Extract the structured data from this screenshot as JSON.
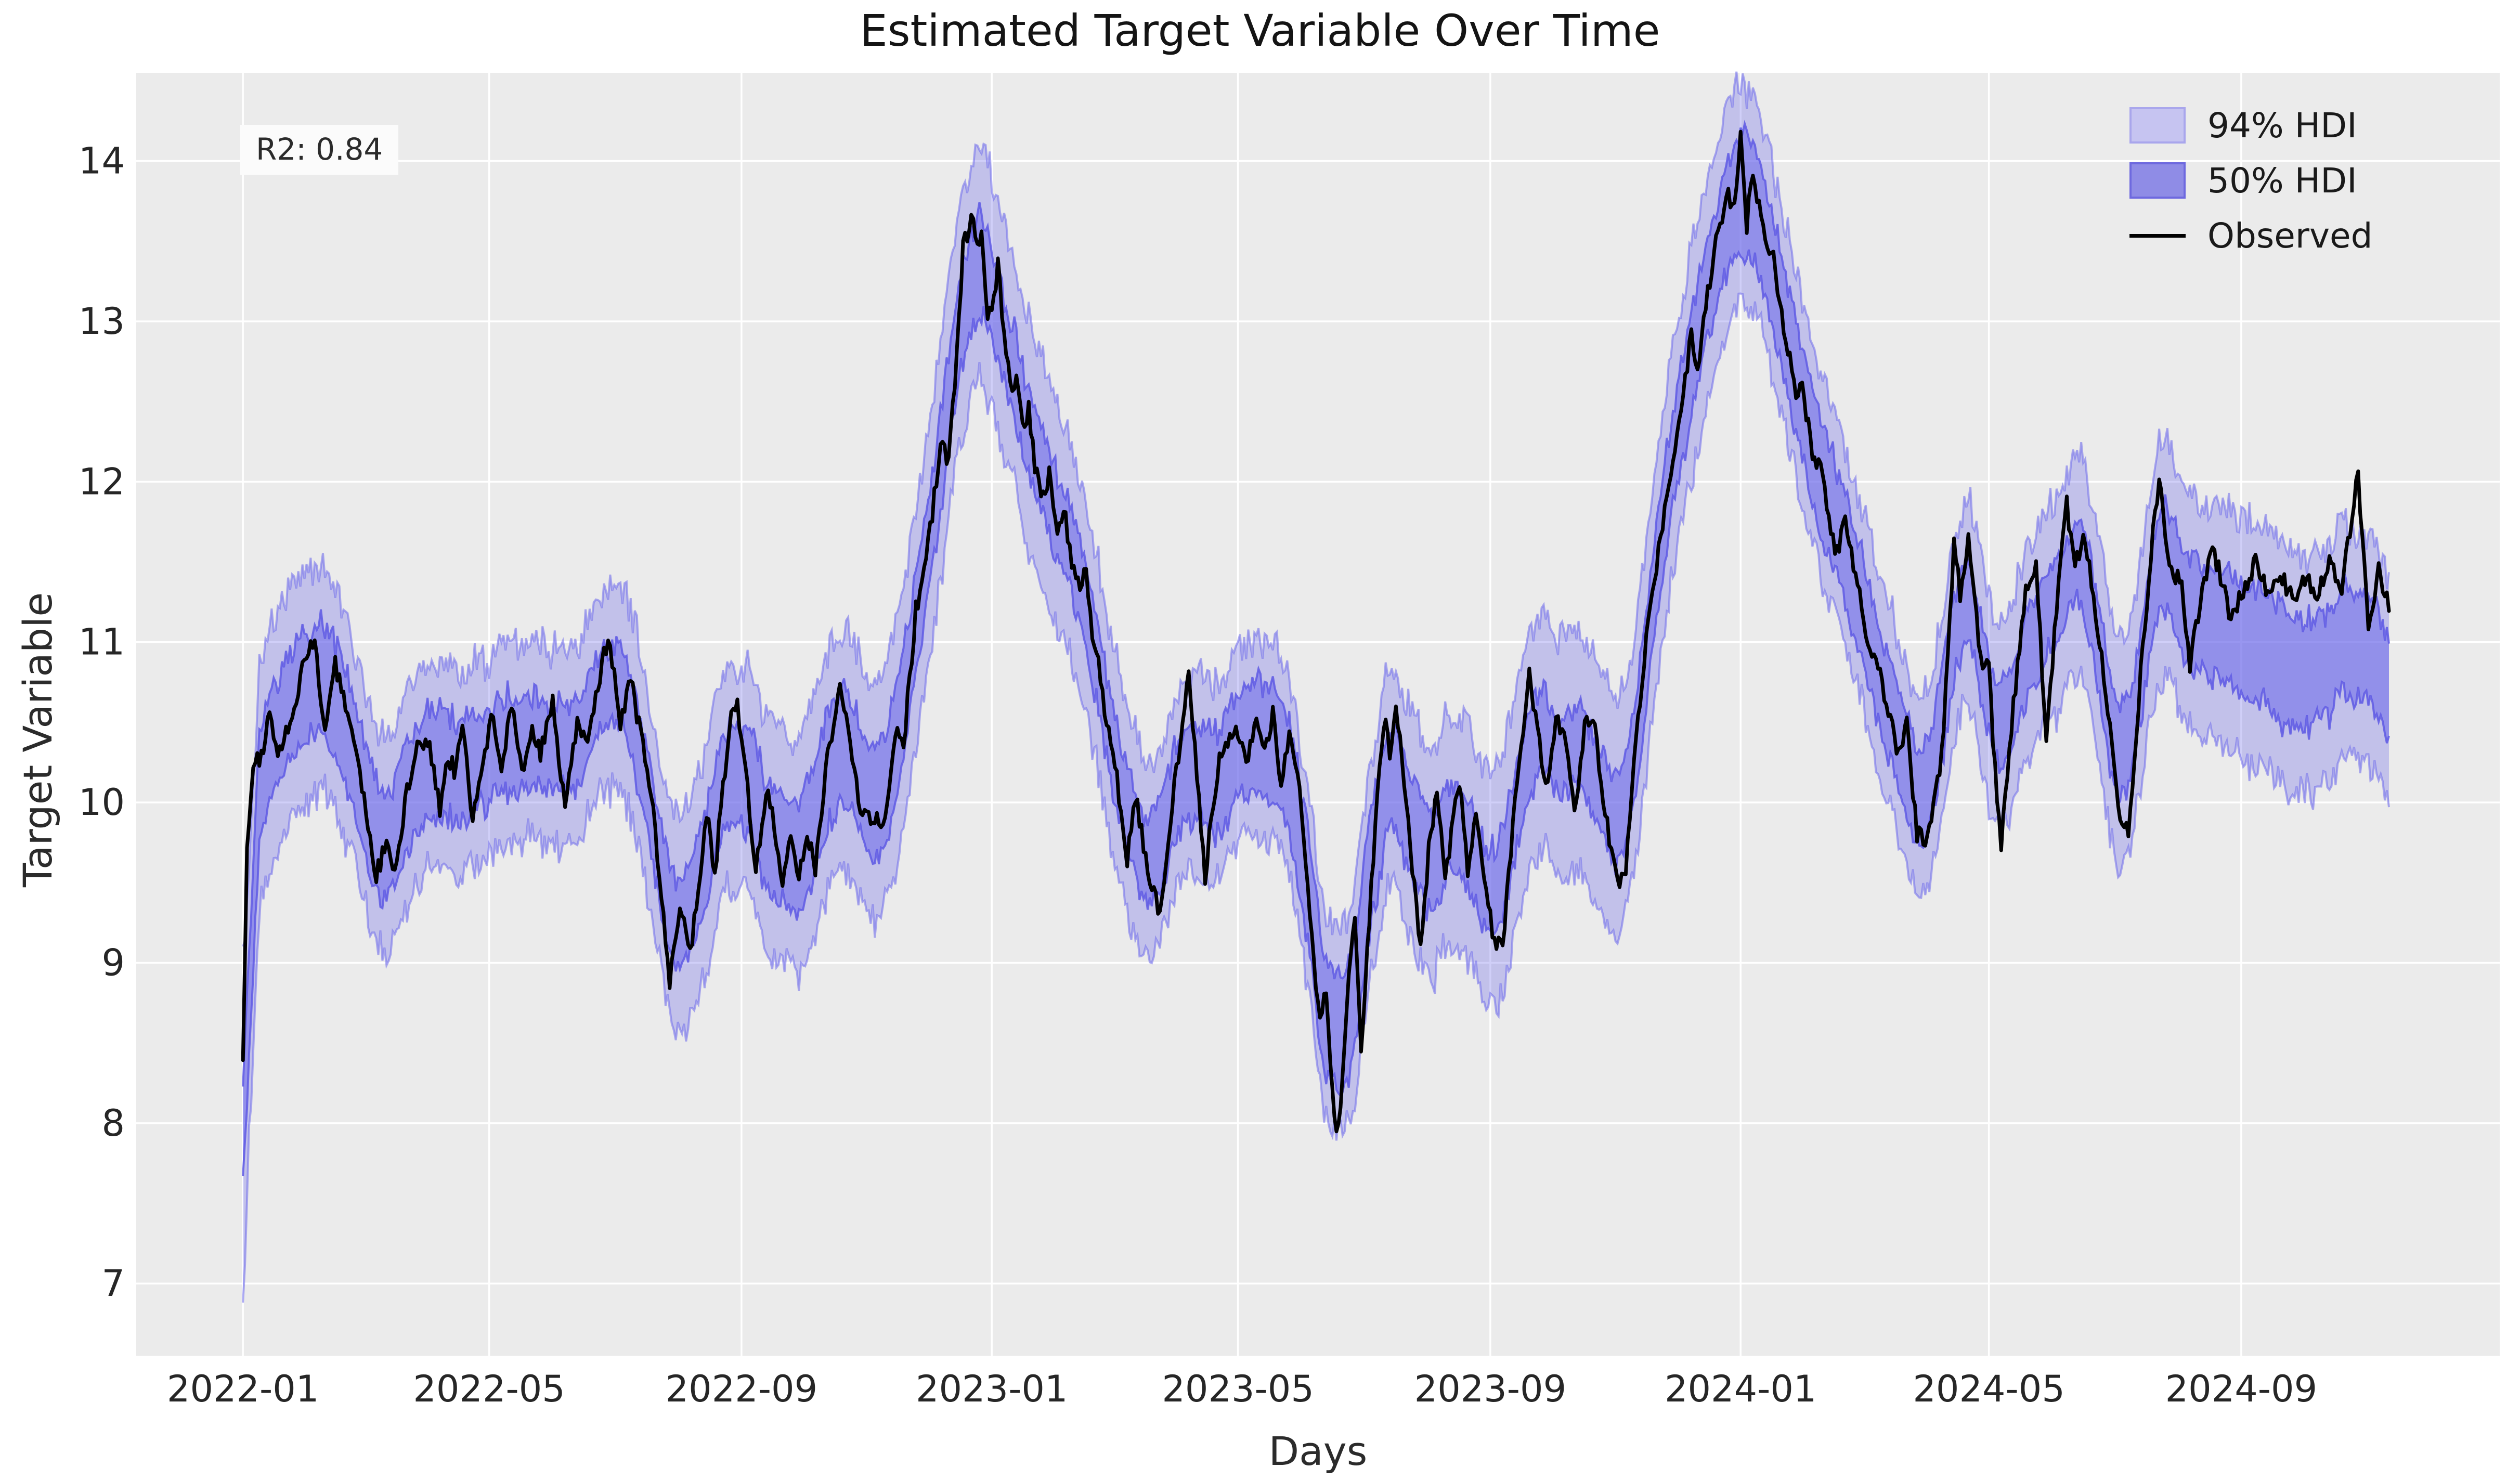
{
  "figure": {
    "title": "Estimated Target Variable Over Time",
    "xlabel": "Days",
    "ylabel": "Target Variable",
    "annotation": "R2: 0.84"
  },
  "legend": {
    "entries": [
      {
        "label": "94% HDI",
        "swatch": "patch",
        "fill": "#c6c4f1",
        "edge": "#a9a6ec"
      },
      {
        "label": "50% HDI",
        "swatch": "patch",
        "fill": "#8f8ce6",
        "edge": "#6e69df"
      },
      {
        "label": "Observed",
        "swatch": "line",
        "color": "#000000"
      }
    ]
  },
  "chart_data": {
    "type": "line",
    "title": "Estimated Target Variable Over Time",
    "xlabel": "Days",
    "ylabel": "Target Variable",
    "x_start_date": "2022-01-01",
    "x_end_date": "2024-11-12",
    "xlim_days": [
      -52,
      1100
    ],
    "ylim": [
      6.55,
      14.55
    ],
    "y_ticks": [
      7,
      8,
      9,
      10,
      11,
      12,
      13,
      14
    ],
    "x_ticks": [
      {
        "day": 0,
        "label": "2022-01"
      },
      {
        "day": 120,
        "label": "2022-05"
      },
      {
        "day": 243,
        "label": "2022-09"
      },
      {
        "day": 365,
        "label": "2023-01"
      },
      {
        "day": 485,
        "label": "2023-05"
      },
      {
        "day": 608,
        "label": "2023-09"
      },
      {
        "day": 730,
        "label": "2024-01"
      },
      {
        "day": 851,
        "label": "2024-05"
      },
      {
        "day": 974,
        "label": "2024-09"
      }
    ],
    "grid": true,
    "legend_position": "upper right",
    "series": [
      {
        "name": "Observed",
        "type": "line",
        "color": "#000000",
        "anchor_days": [
          0,
          2,
          5,
          9,
          13,
          17,
          21,
          25,
          30,
          35,
          40,
          45,
          51,
          56,
          60,
          65,
          70,
          74,
          79,
          85,
          90,
          96,
          100,
          103,
          107,
          112,
          116,
          121,
          126,
          131,
          136,
          141,
          145,
          151,
          157,
          163,
          168,
          173,
          178,
          184,
          189,
          192,
          196,
          200,
          204,
          208,
          213,
          218,
          223,
          226,
          230,
          234,
          238,
          241,
          244,
          250,
          256,
          263,
          267,
          271,
          275,
          279,
          284,
          291,
          296,
          301,
          307,
          313,
          319,
          322,
          328,
          334,
          338,
          341,
          344,
          348,
          351,
          353,
          356,
          358,
          360,
          363,
          366,
          368,
          371,
          374,
          377,
          380,
          383,
          386,
          390,
          393,
          397,
          400,
          404,
          408,
          411,
          414,
          417,
          420,
          422,
          426,
          431,
          435,
          441,
          447,
          455,
          461,
          469,
          476,
          485,
          489,
          494,
          498,
          502,
          506,
          510,
          514,
          517,
          522,
          525,
          528,
          532,
          534,
          539,
          542,
          545,
          550,
          554,
          557,
          559,
          562,
          566,
          570,
          574,
          578,
          582,
          586,
          589,
          593,
          597,
          601,
          606,
          610,
          614,
          620,
          627,
          635,
          640,
          644,
          649,
          655,
          659,
          665,
          671,
          674,
          678,
          683,
          688,
          694,
          700,
          706,
          709,
          713,
          718,
          724,
          727,
          730,
          733,
          735,
          737,
          741,
          744,
          746,
          749,
          754,
          757,
          760,
          765,
          770,
          774,
          777,
          781,
          785,
          792,
          799,
          807,
          811,
          816,
          821,
          828,
          831,
          834,
          837,
          841,
          847,
          851,
          854,
          857,
          863,
          869,
          874,
          879,
          885,
          889,
          893,
          897,
          903,
          909,
          915,
          919,
          925,
          931,
          934,
          939,
          945,
          949,
          954,
          960,
          969,
          976,
          981,
          987,
          993,
          999,
          1005,
          1011,
          1017,
          1023,
          1031,
          1036,
          1041,
          1046
        ],
        "anchor_values": [
          8.45,
          9.7,
          10.2,
          10.3,
          10.55,
          10.3,
          10.45,
          10.6,
          10.9,
          11.0,
          10.45,
          10.85,
          10.55,
          10.3,
          9.9,
          9.55,
          9.75,
          9.55,
          10.0,
          10.35,
          10.4,
          9.95,
          10.3,
          10.2,
          10.5,
          9.9,
          10.15,
          10.55,
          10.2,
          10.6,
          10.15,
          10.45,
          10.3,
          10.65,
          9.95,
          10.5,
          10.35,
          10.7,
          11.05,
          10.5,
          10.8,
          10.55,
          10.3,
          9.95,
          9.4,
          8.9,
          9.35,
          9.05,
          9.6,
          9.95,
          9.55,
          10.1,
          10.55,
          10.6,
          10.3,
          9.6,
          10.1,
          9.5,
          9.75,
          9.55,
          9.8,
          9.6,
          10.2,
          10.75,
          10.4,
          9.95,
          9.9,
          9.9,
          10.5,
          10.35,
          11.2,
          11.6,
          12.0,
          12.3,
          12.1,
          12.8,
          13.45,
          13.55,
          13.65,
          13.45,
          13.6,
          13.0,
          13.15,
          13.35,
          12.9,
          12.6,
          12.65,
          12.35,
          12.45,
          12.1,
          11.9,
          12.05,
          11.7,
          11.85,
          11.5,
          11.3,
          11.45,
          11.05,
          10.85,
          10.6,
          10.45,
          10.15,
          9.65,
          10.05,
          9.6,
          9.3,
          10.2,
          10.8,
          9.55,
          10.3,
          10.45,
          10.25,
          10.55,
          10.35,
          10.55,
          10.1,
          10.45,
          10.2,
          9.8,
          9.0,
          8.6,
          8.85,
          8.0,
          7.95,
          8.9,
          9.3,
          8.45,
          9.5,
          10.2,
          10.55,
          10.3,
          10.65,
          10.1,
          9.6,
          9.1,
          9.7,
          10.1,
          9.5,
          9.8,
          10.15,
          9.55,
          9.9,
          9.4,
          9.15,
          9.1,
          10.0,
          10.8,
          10.1,
          10.5,
          10.45,
          9.95,
          10.55,
          10.45,
          9.85,
          9.5,
          9.6,
          10.3,
          10.9,
          11.4,
          11.9,
          12.4,
          12.9,
          12.7,
          13.1,
          13.5,
          13.8,
          13.7,
          14.15,
          13.6,
          13.9,
          13.85,
          13.6,
          13.4,
          13.45,
          13.1,
          12.75,
          12.55,
          12.6,
          12.2,
          12.05,
          11.7,
          11.55,
          11.8,
          11.5,
          11.0,
          10.75,
          10.3,
          10.5,
          9.8,
          9.75,
          10.3,
          10.9,
          11.6,
          11.3,
          11.65,
          10.9,
          10.85,
          10.2,
          9.75,
          10.6,
          11.3,
          11.45,
          10.4,
          11.35,
          11.85,
          11.45,
          11.7,
          11.2,
          10.6,
          9.9,
          9.8,
          10.8,
          11.7,
          12.0,
          11.5,
          11.35,
          10.85,
          11.25,
          11.6,
          11.15,
          11.35,
          11.5,
          11.3,
          11.45,
          11.25,
          11.4,
          11.3,
          11.5,
          11.35,
          12.05,
          11.1,
          11.45,
          11.25
        ]
      },
      {
        "name": "50% HDI",
        "type": "band",
        "half_width": 0.3
      },
      {
        "name": "94% HDI",
        "type": "band",
        "half_width": 0.68
      }
    ],
    "hdi_model": {
      "smooth_window_days": 10,
      "start_center": 7.95,
      "start_blend_days": 8,
      "late_divergence": {
        "start_day": 940,
        "full_day": 1000,
        "offset": -0.55
      }
    },
    "style": {
      "plot_bg": "#ebebeb",
      "grid_color": "#ffffff",
      "band_base_rgb": "112,108,235",
      "band94_fill_alpha": 0.33,
      "band50_fill_alpha": 0.58,
      "band94_edge": "rgba(112,108,235,0.55)",
      "band50_edge": "rgba(95,90,228,0.85)",
      "observed_color": "#000000",
      "tick_color": "#262626"
    }
  }
}
